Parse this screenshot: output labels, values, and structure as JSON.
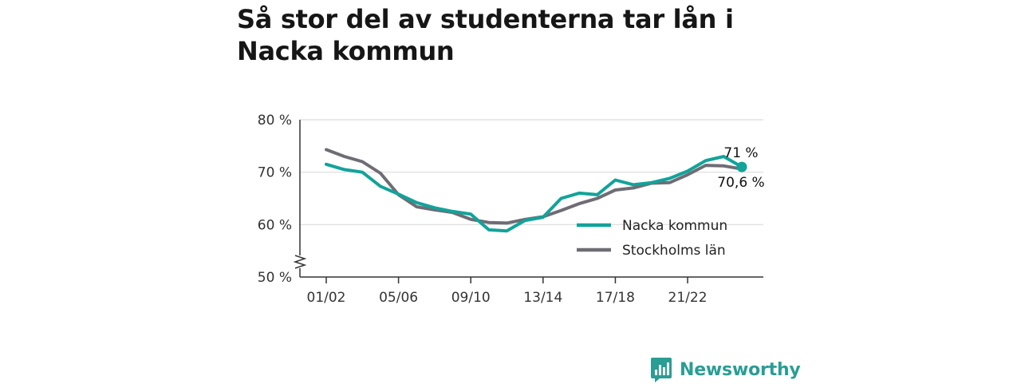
{
  "title": "Så stor del av studenterna tar lån i Nacka kommun",
  "brand": {
    "name": "Newsworthy"
  },
  "colors": {
    "nacka": "#12a39a",
    "stockholm": "#6e6d75",
    "grid": "#dcdcdc",
    "axis": "#333333",
    "brand": "#2a9d95"
  },
  "chart_data": {
    "type": "line",
    "title": "Så stor del av studenterna tar lån i Nacka kommun",
    "xlabel": "",
    "ylabel": "",
    "ylim": [
      50,
      80
    ],
    "y_ticks": [
      50,
      60,
      70,
      80
    ],
    "y_tick_labels": [
      "50 %",
      "60 %",
      "70 %",
      "80 %"
    ],
    "y_axis_break": true,
    "x_tick_labels": [
      "01/02",
      "05/06",
      "09/10",
      "13/14",
      "17/18",
      "21/22"
    ],
    "x": [
      "01/02",
      "02/03",
      "03/04",
      "04/05",
      "05/06",
      "06/07",
      "07/08",
      "08/09",
      "09/10",
      "10/11",
      "11/12",
      "12/13",
      "13/14",
      "14/15",
      "15/16",
      "16/17",
      "17/18",
      "18/19",
      "19/20",
      "20/21",
      "21/22",
      "22/23",
      "23/24",
      "24/25"
    ],
    "grid": true,
    "legend_position": "bottom-right",
    "series": [
      {
        "name": "Nacka kommun",
        "color": "#12a39a",
        "values": [
          71.5,
          70.5,
          70.0,
          67.3,
          65.8,
          64.2,
          63.2,
          62.5,
          62.0,
          59.0,
          58.8,
          60.8,
          61.4,
          65.0,
          66.0,
          65.7,
          68.5,
          67.6,
          68.0,
          68.8,
          70.2,
          72.2,
          73.0,
          71.0
        ],
        "end_label": "71 %"
      },
      {
        "name": "Stockholms län",
        "color": "#6e6d75",
        "values": [
          74.3,
          73.0,
          72.0,
          69.8,
          65.7,
          63.4,
          62.8,
          62.3,
          61.0,
          60.4,
          60.3,
          61.0,
          61.5,
          62.7,
          64.0,
          65.0,
          66.6,
          67.0,
          67.9,
          68.0,
          69.5,
          71.3,
          71.2,
          70.6
        ],
        "end_label": "70,6 %"
      }
    ]
  }
}
